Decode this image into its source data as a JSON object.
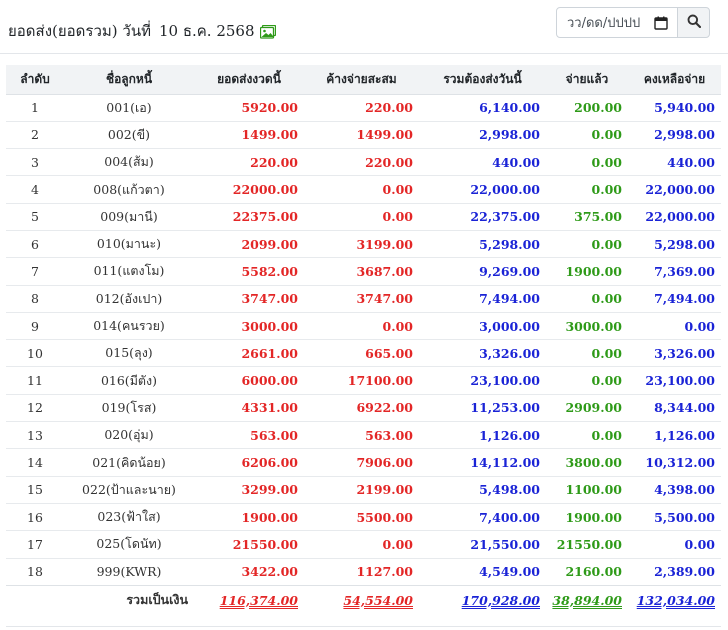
{
  "header": {
    "title": "ยอดส่ง(ยอดรวม) วันที่",
    "date": "10 ธ.ค. 2568",
    "image_icon": "image-icon",
    "date_placeholder": "วว/ดด/ปปปป",
    "calendar_icon": "calendar-icon",
    "search_icon": "search-icon"
  },
  "table": {
    "columns": [
      "ลำดับ",
      "ชื่อลูกหนี้",
      "ยอดส่งงวดนี้",
      "ค้างจ่ายสะสม",
      "รวมต้องส่งวันนี้",
      "จ่ายแล้ว",
      "คงเหลือจ่าย"
    ],
    "rows": [
      [
        "1",
        "001(เอ)",
        "5920.00",
        "220.00",
        "6,140.00",
        "200.00",
        "5,940.00"
      ],
      [
        "2",
        "002(ขี)",
        "1499.00",
        "1499.00",
        "2,998.00",
        "0.00",
        "2,998.00"
      ],
      [
        "3",
        "004(ส้ม)",
        "220.00",
        "220.00",
        "440.00",
        "0.00",
        "440.00"
      ],
      [
        "4",
        "008(แก้วตา)",
        "22000.00",
        "0.00",
        "22,000.00",
        "0.00",
        "22,000.00"
      ],
      [
        "5",
        "009(มานี)",
        "22375.00",
        "0.00",
        "22,375.00",
        "375.00",
        "22,000.00"
      ],
      [
        "6",
        "010(มานะ)",
        "2099.00",
        "3199.00",
        "5,298.00",
        "0.00",
        "5,298.00"
      ],
      [
        "7",
        "011(แตงโม)",
        "5582.00",
        "3687.00",
        "9,269.00",
        "1900.00",
        "7,369.00"
      ],
      [
        "8",
        "012(อังเปา)",
        "3747.00",
        "3747.00",
        "7,494.00",
        "0.00",
        "7,494.00"
      ],
      [
        "9",
        "014(คนรวย)",
        "3000.00",
        "0.00",
        "3,000.00",
        "3000.00",
        "0.00"
      ],
      [
        "10",
        "015(ลุง)",
        "2661.00",
        "665.00",
        "3,326.00",
        "0.00",
        "3,326.00"
      ],
      [
        "11",
        "016(มีตัง)",
        "6000.00",
        "17100.00",
        "23,100.00",
        "0.00",
        "23,100.00"
      ],
      [
        "12",
        "019(โรส)",
        "4331.00",
        "6922.00",
        "11,253.00",
        "2909.00",
        "8,344.00"
      ],
      [
        "13",
        "020(อุ่ม)",
        "563.00",
        "563.00",
        "1,126.00",
        "0.00",
        "1,126.00"
      ],
      [
        "14",
        "021(คิดน้อย)",
        "6206.00",
        "7906.00",
        "14,112.00",
        "3800.00",
        "10,312.00"
      ],
      [
        "15",
        "022(ป้าและนาย)",
        "3299.00",
        "2199.00",
        "5,498.00",
        "1100.00",
        "4,398.00"
      ],
      [
        "16",
        "023(ฟ้าใส)",
        "1900.00",
        "5500.00",
        "7,400.00",
        "1900.00",
        "5,500.00"
      ],
      [
        "17",
        "025(โดนัท)",
        "21550.00",
        "0.00",
        "21,550.00",
        "21550.00",
        "0.00"
      ],
      [
        "18",
        "999(KWR)",
        "3422.00",
        "1127.00",
        "4,549.00",
        "2160.00",
        "2,389.00"
      ]
    ],
    "total_label": "รวมเป็นเงิน",
    "totals": [
      "116,374.00",
      "54,554.00",
      "170,928.00",
      "38,894.00",
      "132,034.00"
    ]
  },
  "colors": {
    "red": "#e32626",
    "blue": "#1a23d6",
    "green": "#2e9a18",
    "header_bg": "#f1f3f5"
  }
}
